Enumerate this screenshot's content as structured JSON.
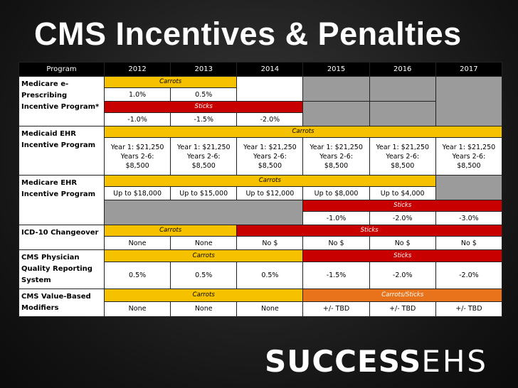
{
  "title": "CMS Incentives & Penalties",
  "headers": [
    "Program",
    "2012",
    "2013",
    "2014",
    "2015",
    "2016",
    "2017"
  ],
  "labels": {
    "carrots": "Carrots",
    "sticks": "Sticks",
    "carrots_sticks": "Carrots/Sticks"
  },
  "programs": {
    "erx": "Medicare e-Prescribing Incentive Program*",
    "medicaid": "Medicaid EHR Incentive Program",
    "medicare_ehr": "Medicare EHR Incentive Program",
    "icd10": "ICD-10 Changeover",
    "pqrs": "CMS Physician Quality Reporting System",
    "vbm": "CMS Value-Based Modifiers"
  },
  "erx": {
    "carrots": [
      "1.0%",
      "0.5%"
    ],
    "sticks": [
      "-1.0%",
      "-1.5%",
      "-2.0%"
    ]
  },
  "medicaid": {
    "line1": "Year 1: $21,250",
    "line2": "Years 2-6:",
    "line3": "$8,500"
  },
  "medicare_ehr": {
    "carrots": [
      "Up to $18,000",
      "Up to $15,000",
      "Up to $12,000",
      "Up to $8,000",
      "Up to $4,000"
    ],
    "sticks": [
      "-1.0%",
      "-2.0%",
      "-3.0%"
    ]
  },
  "icd10": {
    "values": [
      "None",
      "None",
      "No $",
      "No $",
      "No $",
      "No $"
    ]
  },
  "pqrs": {
    "values": [
      "0.5%",
      "0.5%",
      "0.5%",
      "-1.5%",
      "-2.0%",
      "-2.0%"
    ]
  },
  "vbm": {
    "values": [
      "None",
      "None",
      "None",
      "+/- TBD",
      "+/- TBD",
      "+/- TBD"
    ]
  },
  "colors": {
    "carrot": "#f6c200",
    "stick": "#c80000",
    "carrot_stick": "#e8731a",
    "gray": "#9b9b9b"
  },
  "logo": {
    "brand": "SUCCESS",
    "suffix": "EHS"
  }
}
